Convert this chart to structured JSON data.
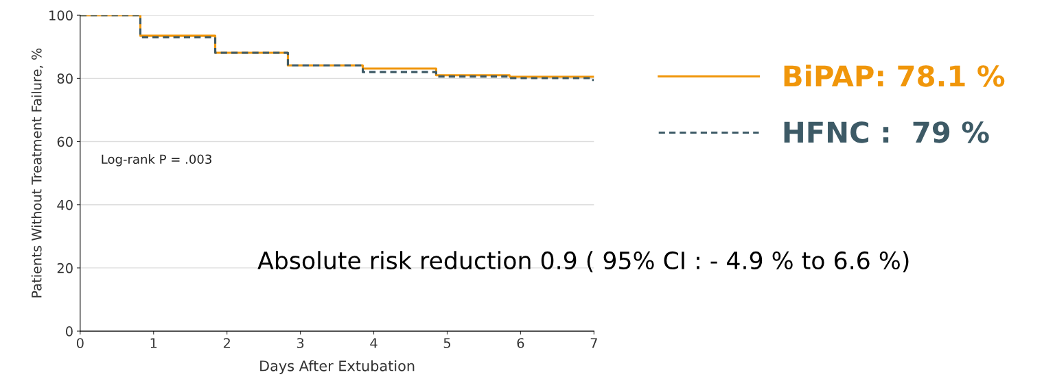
{
  "chart_data": {
    "type": "step",
    "xlabel": "Days After Extubation",
    "ylabel": "Patients Without Treatment Failure, %",
    "x": [
      0,
      0.82,
      1.84,
      2.83,
      3.85,
      4.85,
      5.85,
      7
    ],
    "series": [
      {
        "name": "BiPAP: 78.1 %",
        "color": "#f0960a",
        "line_style": "solid",
        "values": [
          100,
          93.5,
          88.1,
          84.1,
          83.1,
          81,
          80.5,
          80.5
        ]
      },
      {
        "name": "HFNC :  79 %",
        "color": "#3d5a66",
        "line_style": "dashed",
        "x": [
          0,
          0.82,
          1.84,
          2.83,
          3.85,
          4.85,
          5.85,
          6.95,
          7
        ],
        "values": [
          100,
          93,
          88.1,
          84.1,
          82,
          80.6,
          80.1,
          79.5,
          79.5
        ]
      }
    ],
    "xlim": [
      0,
      7
    ],
    "ylim": [
      0,
      100
    ],
    "xticks": [
      0,
      1,
      2,
      3,
      4,
      5,
      6,
      7
    ],
    "yticks": [
      0,
      20,
      40,
      60,
      80,
      100
    ],
    "grid": "y",
    "legend": "right",
    "annotations": [
      "Log-rank P = .003",
      "Absolute risk reduction 0.9 ( 95% CI : - 4.9 % to 6.6 %)"
    ]
  }
}
